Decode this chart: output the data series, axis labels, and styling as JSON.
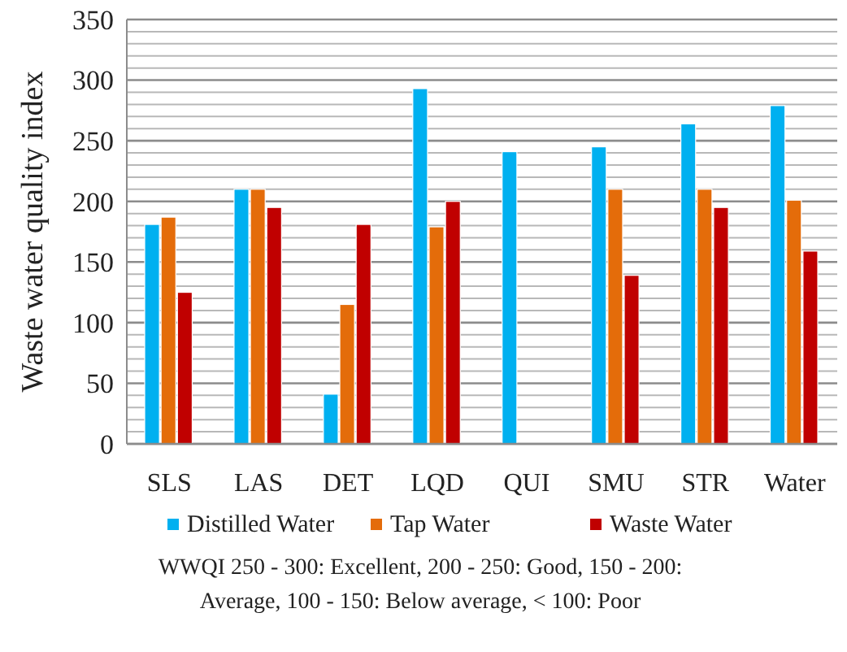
{
  "chart_data": {
    "type": "bar",
    "ylabel": "Waste water quality index",
    "categories": [
      "SLS",
      "LAS",
      "DET",
      "LQD",
      "QUI",
      "SMU",
      "STR",
      "Water"
    ],
    "series": [
      {
        "name": "Distilled Water",
        "color": "#00b0f0",
        "values": [
          181,
          210,
          41,
          293,
          241,
          245,
          264,
          279
        ]
      },
      {
        "name": "Tap Water",
        "color": "#e46c0a",
        "values": [
          187,
          210,
          115,
          179,
          null,
          210,
          210,
          201
        ]
      },
      {
        "name": "Waste Water",
        "color": "#c00000",
        "values": [
          125,
          195,
          181,
          200,
          null,
          139,
          195,
          159
        ]
      }
    ],
    "ylim": [
      0,
      350
    ],
    "yticks": [
      0,
      {
        "value": 10,
        "label": null
      },
      {
        "value": 20,
        "label": null
      },
      {
        "value": 30,
        "label": null
      },
      {
        "value": 40,
        "label": null
      },
      50,
      {
        "value": 60,
        "label": null
      },
      {
        "value": 70,
        "label": null
      },
      {
        "value": 80,
        "label": null
      },
      {
        "value": 90,
        "label": null
      },
      100,
      {
        "value": 110,
        "label": null
      },
      {
        "value": 120,
        "label": null
      },
      {
        "value": 130,
        "label": null
      },
      {
        "value": 140,
        "label": null
      },
      150,
      {
        "value": 160,
        "label": null
      },
      {
        "value": 170,
        "label": null
      },
      {
        "value": 180,
        "label": null
      },
      {
        "value": 190,
        "label": null
      },
      200,
      {
        "value": 210,
        "label": null
      },
      {
        "value": 220,
        "label": null
      },
      {
        "value": 230,
        "label": null
      },
      {
        "value": 240,
        "label": null
      },
      250,
      {
        "value": 260,
        "label": null
      },
      {
        "value": 270,
        "label": null
      },
      {
        "value": 280,
        "label": null
      },
      {
        "value": 290,
        "label": null
      },
      300,
      {
        "value": 310,
        "label": null
      },
      {
        "value": 320,
        "label": null
      },
      {
        "value": 330,
        "label": null
      },
      {
        "value": 340,
        "label": null
      },
      350
    ],
    "grid": "y",
    "legend": "bottom",
    "annotations": [
      "WWQI 250 - 300: Excellent, 200 - 250: Good, 150 - 200: Average, 100 - 150: Below average, < 100: Poor"
    ]
  }
}
